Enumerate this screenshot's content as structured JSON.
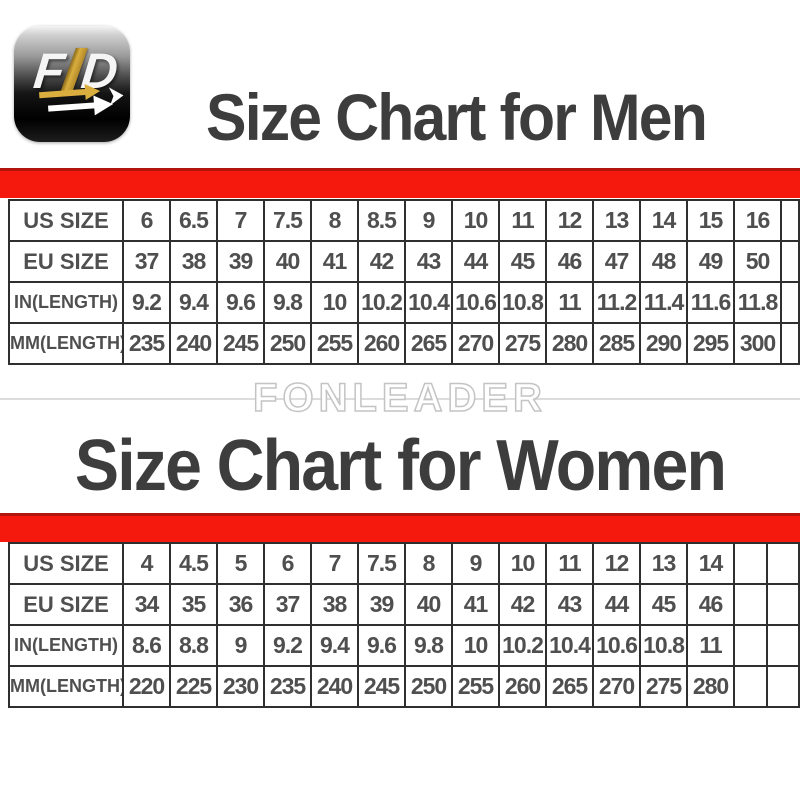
{
  "colors": {
    "accent_red": "#f5190d",
    "title_gray": "#3d3d3d",
    "table_text_gray": "#4f4f4f",
    "logo_gold": "#d9ae3e"
  },
  "logo": {
    "letters": [
      "F",
      "D"
    ]
  },
  "watermark_text": "FONLEADER",
  "chart_data": [
    {
      "type": "table",
      "title": "Size Chart for Men",
      "rows": [
        {
          "label": "US SIZE",
          "values": [
            "6",
            "6.5",
            "7",
            "7.5",
            "8",
            "8.5",
            "9",
            "10",
            "11",
            "12",
            "13",
            "14",
            "15",
            "16"
          ]
        },
        {
          "label": "EU SIZE",
          "values": [
            "37",
            "38",
            "39",
            "40",
            "41",
            "42",
            "43",
            "44",
            "45",
            "46",
            "47",
            "48",
            "49",
            "50"
          ]
        },
        {
          "label": "IN(LENGTH)",
          "values": [
            "9.2",
            "9.4",
            "9.6",
            "9.8",
            "10",
            "10.2",
            "10.4",
            "10.6",
            "10.8",
            "11",
            "11.2",
            "11.4",
            "11.6",
            "11.8"
          ]
        },
        {
          "label": "MM(LENGTH)",
          "values": [
            "235",
            "240",
            "245",
            "250",
            "255",
            "260",
            "265",
            "270",
            "275",
            "280",
            "285",
            "290",
            "295",
            "300"
          ]
        }
      ],
      "empty_trailing_columns": 1
    },
    {
      "type": "table",
      "title": "Size Chart for Women",
      "rows": [
        {
          "label": "US SIZE",
          "values": [
            "4",
            "4.5",
            "5",
            "6",
            "7",
            "7.5",
            "8",
            "9",
            "10",
            "11",
            "12",
            "13",
            "14"
          ]
        },
        {
          "label": "EU SIZE",
          "values": [
            "34",
            "35",
            "36",
            "37",
            "38",
            "39",
            "40",
            "41",
            "42",
            "43",
            "44",
            "45",
            "46"
          ]
        },
        {
          "label": "IN(LENGTH)",
          "values": [
            "8.6",
            "8.8",
            "9",
            "9.2",
            "9.4",
            "9.6",
            "9.8",
            "10",
            "10.2",
            "10.4",
            "10.6",
            "10.8",
            "11"
          ]
        },
        {
          "label": "MM(LENGTH)",
          "values": [
            "220",
            "225",
            "230",
            "235",
            "240",
            "245",
            "250",
            "255",
            "260",
            "265",
            "270",
            "275",
            "280"
          ]
        }
      ],
      "empty_trailing_columns": 2
    }
  ]
}
